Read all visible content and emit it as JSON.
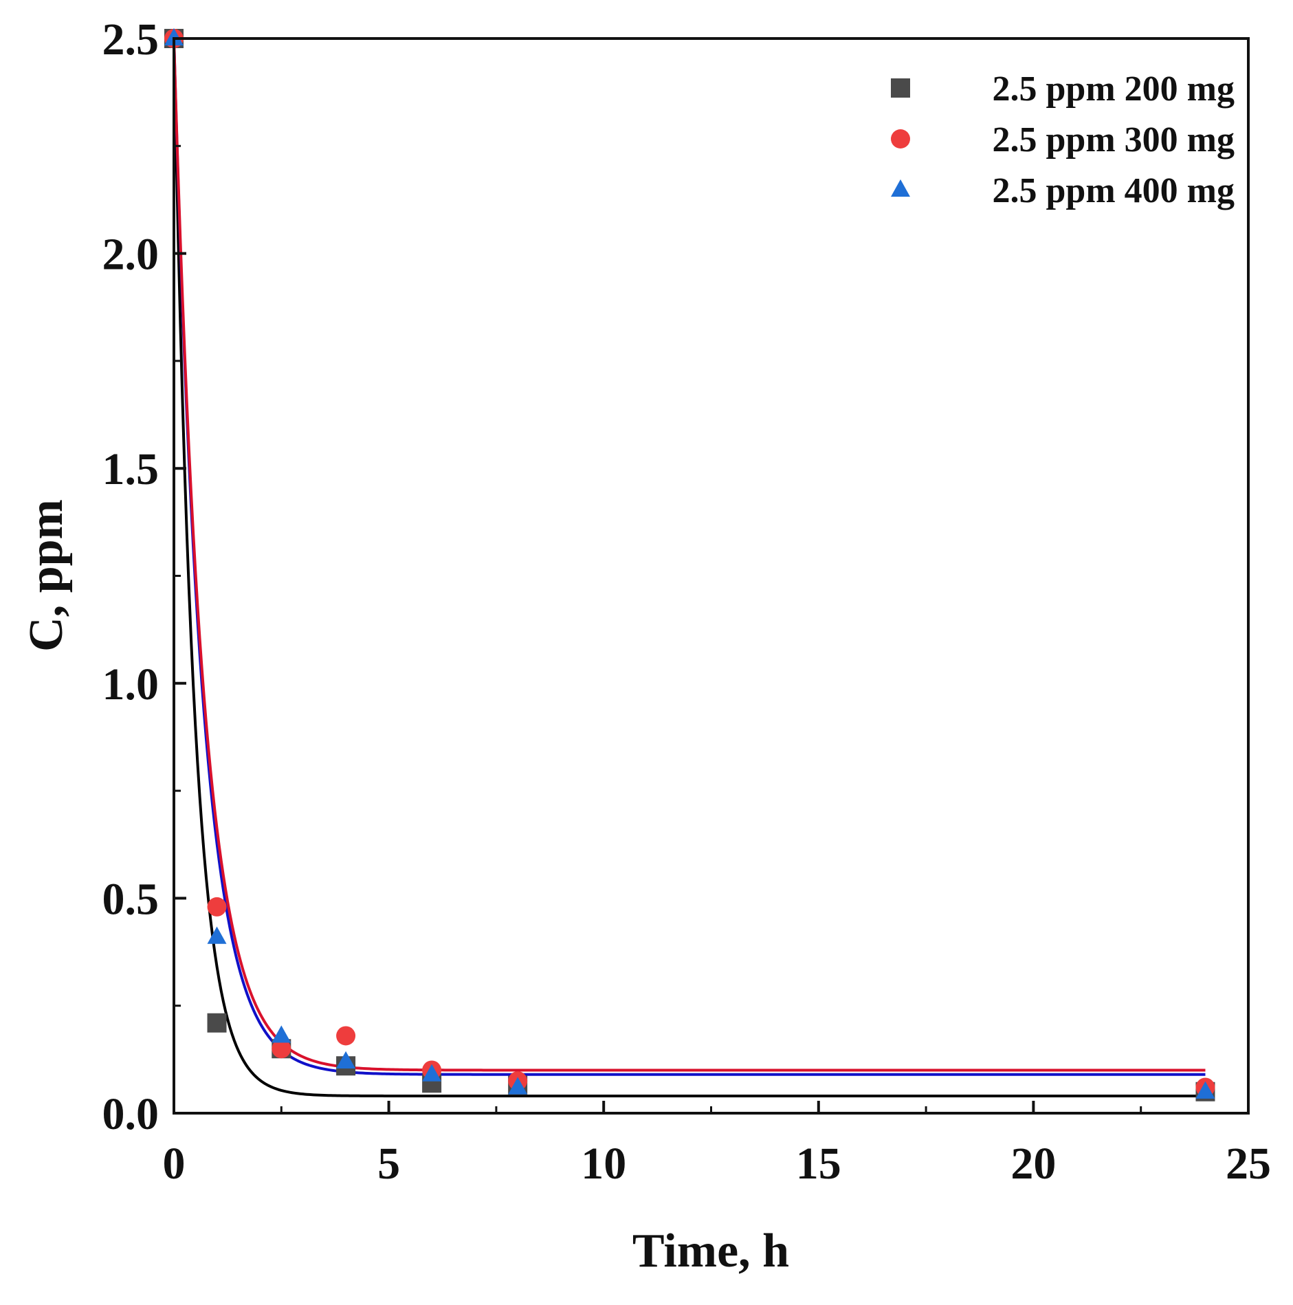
{
  "chart_data": {
    "type": "scatter",
    "title": "",
    "xlabel": "Time, h",
    "ylabel": "C, ppm",
    "xlim": [
      0,
      25
    ],
    "ylim": [
      0,
      2.5
    ],
    "x_ticks": [
      "0",
      "5",
      "10",
      "15",
      "20",
      "25"
    ],
    "y_ticks": [
      "0.0",
      "0.5",
      "1.0",
      "1.5",
      "2.0",
      "2.5"
    ],
    "legend_position": "top-right",
    "series": [
      {
        "name": "2.5 ppm 200 mg",
        "marker": "square",
        "color": "#4a4a4a",
        "fit_color": "#000000",
        "points": [
          [
            0,
            2.5
          ],
          [
            1,
            0.21
          ],
          [
            2.5,
            0.15
          ],
          [
            4,
            0.11
          ],
          [
            6,
            0.07
          ],
          [
            8,
            0.065
          ],
          [
            24,
            0.05
          ]
        ],
        "fit": {
          "c0": 2.5,
          "c_inf": 0.04,
          "k": 2.1
        }
      },
      {
        "name": "2.5 ppm 300 mg",
        "marker": "circle",
        "color": "#ee3d3d",
        "fit_color": "#d9112c",
        "points": [
          [
            0,
            2.5
          ],
          [
            1,
            0.48
          ],
          [
            2.5,
            0.15
          ],
          [
            4,
            0.18
          ],
          [
            6,
            0.1
          ],
          [
            8,
            0.075
          ],
          [
            24,
            0.06
          ]
        ],
        "fit": {
          "c0": 2.5,
          "c_inf": 0.1,
          "k": 1.45
        }
      },
      {
        "name": "2.5 ppm 400 mg",
        "marker": "triangle",
        "color": "#1f6fd6",
        "fit_color": "#1010c8",
        "points": [
          [
            0,
            2.5
          ],
          [
            1,
            0.41
          ],
          [
            2.5,
            0.18
          ],
          [
            4,
            0.12
          ],
          [
            6,
            0.09
          ],
          [
            8,
            0.06
          ],
          [
            24,
            0.05
          ]
        ],
        "fit": {
          "c0": 2.5,
          "c_inf": 0.09,
          "k": 1.5
        }
      }
    ]
  }
}
